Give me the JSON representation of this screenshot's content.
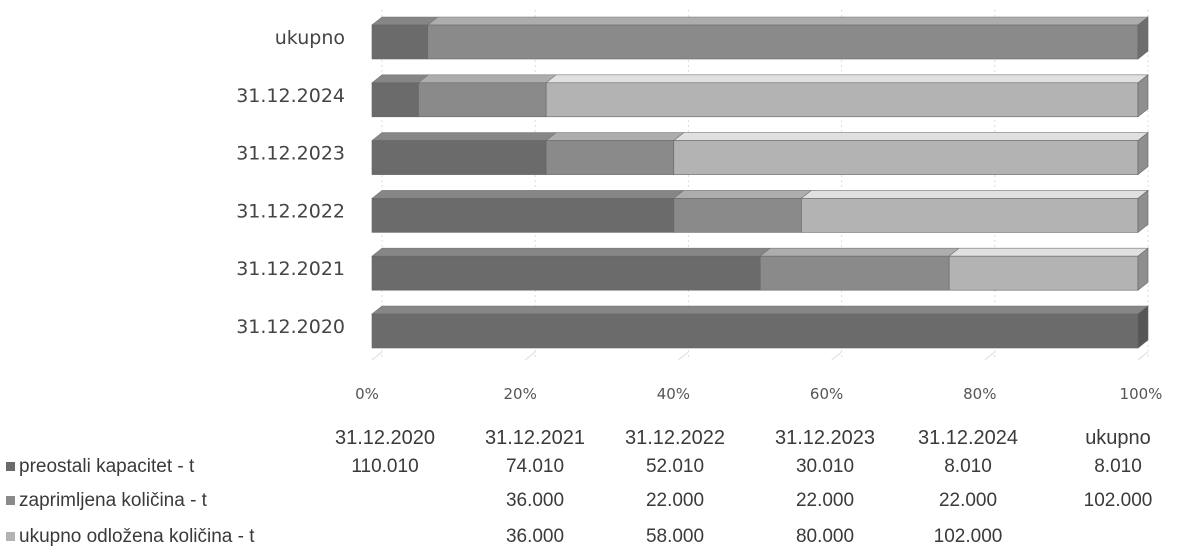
{
  "chart_data": {
    "type": "bar",
    "orientation": "horizontal",
    "stacked": "percent",
    "style": "3d",
    "categories": [
      "31.12.2020",
      "31.12.2021",
      "31.12.2022",
      "31.12.2023",
      "31.12.2024",
      "ukupno"
    ],
    "series": [
      {
        "name": "preostali kapacitet - t",
        "values": [
          110010,
          74010,
          52010,
          30010,
          8010,
          8010
        ],
        "labels": [
          "110.010",
          "74.010",
          "52.010",
          "30.010",
          "8.010",
          "8.010"
        ],
        "color": "#6b6b6b"
      },
      {
        "name": "zaprimljena količina - t",
        "values": [
          0,
          36000,
          22000,
          22000,
          22000,
          102000
        ],
        "labels": [
          "",
          "36.000",
          "22.000",
          "22.000",
          "22.000",
          "102.000"
        ],
        "color": "#8a8a8a"
      },
      {
        "name": "ukupno odložena količina - t",
        "values": [
          0,
          36000,
          58000,
          80000,
          102000,
          0
        ],
        "labels": [
          "",
          "36.000",
          "58.000",
          "80.000",
          "102.000",
          ""
        ],
        "color": "#b3b3b3"
      }
    ],
    "xticks": [
      "0%",
      "20%",
      "40%",
      "60%",
      "80%",
      "100%"
    ],
    "xlim": [
      0,
      100
    ],
    "grid": true,
    "legend": "data-table-below"
  }
}
